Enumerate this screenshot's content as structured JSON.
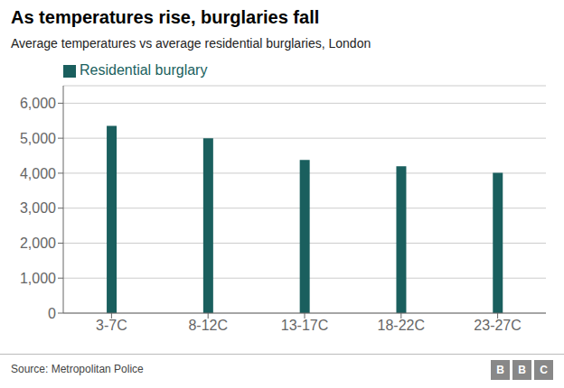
{
  "chart_data": {
    "type": "bar",
    "title": "As temperatures rise, burglaries fall",
    "subtitle": "Average temperatures vs average residential burglaries, London",
    "source": "Source: Metropolitan Police",
    "annotations": [
      "B",
      "B",
      "C"
    ],
    "categories": [
      "3-7C",
      "8-12C",
      "13-17C",
      "18-22C",
      "23-27C"
    ],
    "series": [
      {
        "name": "Residential burglary",
        "color": "#1a5f5e",
        "values": [
          5350,
          5000,
          4380,
          4200,
          4010
        ]
      }
    ],
    "ylim": [
      0,
      6500
    ],
    "yticks": [
      0,
      {
        "value": 1000,
        "label": "1,000"
      },
      {
        "value": 2000,
        "label": "2,000"
      },
      {
        "value": 3000,
        "label": "3,000"
      },
      {
        "value": 4000,
        "label": "4,000"
      },
      {
        "value": 5000,
        "label": "5,000"
      },
      {
        "value": 6000,
        "label": "6,000"
      }
    ],
    "grid": true,
    "legend": "upper left"
  }
}
